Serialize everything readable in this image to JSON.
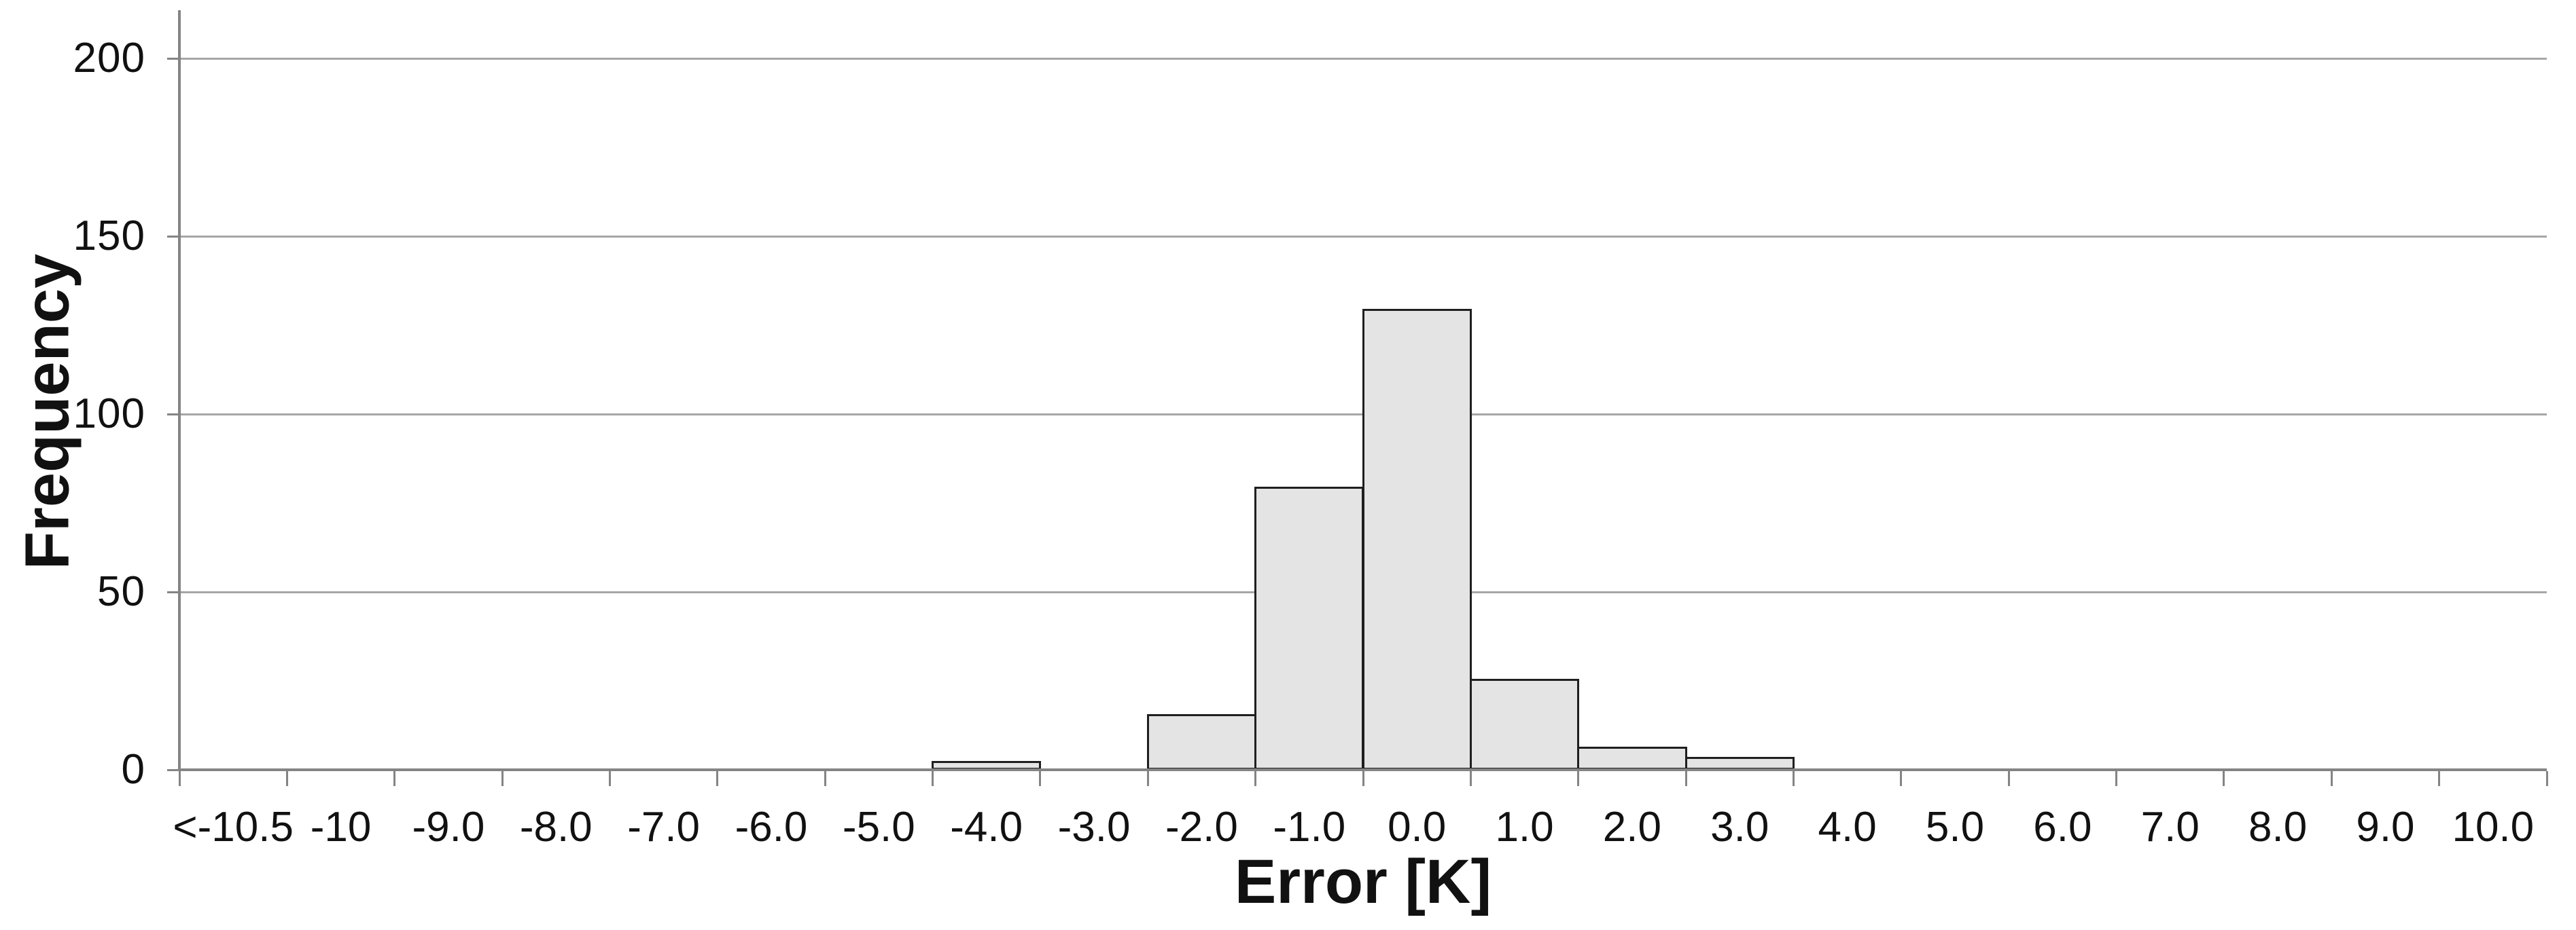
{
  "chart_data": {
    "type": "bar",
    "subtype": "histogram",
    "title": "",
    "xlabel": "Error [K]",
    "ylabel": "Frequency",
    "categories": [
      "<-10.5",
      "-10",
      "-9.0",
      "-8.0",
      "-7.0",
      "-6.0",
      "-5.0",
      "-4.0",
      "-3.0",
      "-2.0",
      "-1.0",
      "0.0",
      "1.0",
      "2.0",
      "3.0",
      "4.0",
      "5.0",
      "6.0",
      "7.0",
      "8.0",
      "9.0",
      "10.0"
    ],
    "values": [
      0,
      0,
      0,
      0,
      0,
      0,
      0,
      2,
      0,
      15,
      79,
      129,
      25,
      6,
      3,
      0,
      0,
      0,
      0,
      0,
      0,
      0
    ],
    "ylim": [
      0,
      200
    ],
    "yticks": [
      0,
      50,
      100,
      150,
      200
    ],
    "grid": "horizontal",
    "legend": "none",
    "colors": {
      "bar_fill": "#e4e4e4",
      "bar_border": "#1f1f1f",
      "gridline": "#a6a6a6",
      "axis": "#848484",
      "text": "#111111",
      "background": "#ffffff"
    }
  }
}
